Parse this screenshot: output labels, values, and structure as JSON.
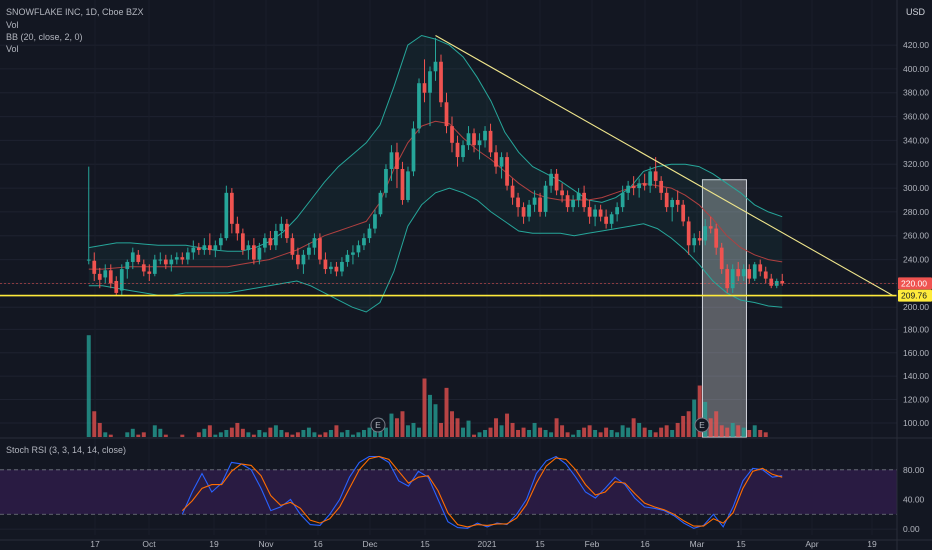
{
  "header": {
    "symbol_line": "SNOWFLAKE INC, 1D, Cboe BZX",
    "currency": "USD",
    "studies": [
      "Vol",
      "BB (20, close, 2, 0)",
      "Vol"
    ]
  },
  "rsi_panel": {
    "title": "Stoch RSI (3, 3, 14, 14, close)"
  },
  "colors": {
    "background": "#131722",
    "up": "#26a69a",
    "down": "#ef5350",
    "bb_band": "#26a69a",
    "bb_basis": "#b04040",
    "trendline": "#f0e68c",
    "support": "#ffeb3b",
    "rsi_k": "#2962ff",
    "rsi_d": "#ff6d00",
    "rsi_fill": "#2a1b44"
  },
  "chart_data": [
    {
      "type": "candlestick",
      "title": "SNOWFLAKE INC, 1D, Cboe BZX",
      "y_axis_ticks": [
        200,
        220,
        240,
        260,
        280,
        300,
        320,
        340,
        360,
        380,
        400,
        420
      ],
      "ylim": [
        196,
        436
      ],
      "x_axis_labels": [
        "17",
        "Oct",
        "19",
        "Nov",
        "16",
        "Dec",
        "15",
        "2021",
        "15",
        "Feb",
        "16",
        "Mar",
        "15",
        "Apr",
        "19"
      ],
      "price_labels": [
        {
          "value": "220.00",
          "color": "#ef5350"
        },
        {
          "value": "209.76",
          "color": "#ffeb3b"
        }
      ],
      "annotations": {
        "descending_trendline": {
          "from_price": 428,
          "to_price": 209.76
        },
        "support_line": 209.76,
        "highlight_box": {
          "from_price": 207,
          "to_price": 307
        },
        "earnings_markers": [
          "E",
          "E"
        ]
      },
      "candles_ohlc": [
        [
          240,
          318,
          236,
          240
        ],
        [
          239,
          246,
          222,
          228
        ],
        [
          228,
          233,
          216,
          223
        ],
        [
          225,
          236,
          220,
          231
        ],
        [
          231,
          236,
          216,
          220
        ],
        [
          222,
          226,
          210,
          212
        ],
        [
          214,
          236,
          210,
          232
        ],
        [
          232,
          240,
          224,
          238
        ],
        [
          238,
          250,
          232,
          246
        ],
        [
          244,
          248,
          236,
          238
        ],
        [
          236,
          240,
          226,
          230
        ],
        [
          230,
          236,
          222,
          228
        ],
        [
          228,
          244,
          226,
          240
        ],
        [
          240,
          246,
          236,
          240
        ],
        [
          240,
          244,
          232,
          236
        ],
        [
          236,
          244,
          230,
          240
        ],
        [
          240,
          246,
          236,
          242
        ],
        [
          242,
          246,
          236,
          240
        ],
        [
          240,
          250,
          236,
          246
        ],
        [
          246,
          256,
          240,
          250
        ],
        [
          250,
          254,
          244,
          248
        ],
        [
          248,
          258,
          244,
          252
        ],
        [
          252,
          262,
          244,
          248
        ],
        [
          248,
          256,
          242,
          252
        ],
        [
          252,
          262,
          248,
          258
        ],
        [
          258,
          302,
          256,
          296
        ],
        [
          296,
          300,
          262,
          270
        ],
        [
          270,
          276,
          256,
          262
        ],
        [
          262,
          266,
          244,
          248
        ],
        [
          248,
          256,
          240,
          252
        ],
        [
          252,
          258,
          236,
          240
        ],
        [
          240,
          254,
          236,
          250
        ],
        [
          250,
          262,
          246,
          258
        ],
        [
          258,
          264,
          248,
          252
        ],
        [
          252,
          270,
          248,
          264
        ],
        [
          264,
          276,
          258,
          270
        ],
        [
          270,
          274,
          254,
          258
        ],
        [
          258,
          262,
          240,
          244
        ],
        [
          244,
          250,
          232,
          236
        ],
        [
          236,
          248,
          228,
          244
        ],
        [
          244,
          254,
          240,
          250
        ],
        [
          250,
          262,
          244,
          258
        ],
        [
          258,
          262,
          236,
          240
        ],
        [
          240,
          246,
          228,
          232
        ],
        [
          232,
          238,
          228,
          234
        ],
        [
          234,
          238,
          226,
          230
        ],
        [
          230,
          242,
          226,
          238
        ],
        [
          238,
          248,
          234,
          244
        ],
        [
          244,
          252,
          236,
          246
        ],
        [
          246,
          256,
          242,
          252
        ],
        [
          252,
          262,
          248,
          258
        ],
        [
          258,
          270,
          254,
          266
        ],
        [
          266,
          282,
          262,
          278
        ],
        [
          278,
          298,
          276,
          296
        ],
        [
          296,
          320,
          292,
          316
        ],
        [
          316,
          336,
          306,
          330
        ],
        [
          330,
          338,
          300,
          316
        ],
        [
          316,
          322,
          286,
          290
        ],
        [
          290,
          318,
          288,
          314
        ],
        [
          314,
          356,
          310,
          350
        ],
        [
          350,
          392,
          346,
          388
        ],
        [
          388,
          408,
          372,
          380
        ],
        [
          380,
          402,
          352,
          398
        ],
        [
          398,
          426,
          390,
          406
        ],
        [
          406,
          412,
          368,
          372
        ],
        [
          372,
          380,
          346,
          352
        ],
        [
          352,
          360,
          330,
          338
        ],
        [
          338,
          344,
          318,
          326
        ],
        [
          326,
          340,
          322,
          336
        ],
        [
          336,
          352,
          332,
          346
        ],
        [
          346,
          350,
          330,
          336
        ],
        [
          336,
          346,
          324,
          340
        ],
        [
          340,
          352,
          334,
          348
        ],
        [
          348,
          354,
          326,
          330
        ],
        [
          330,
          336,
          312,
          318
        ],
        [
          318,
          330,
          308,
          326
        ],
        [
          326,
          330,
          298,
          302
        ],
        [
          302,
          308,
          286,
          292
        ],
        [
          292,
          296,
          276,
          284
        ],
        [
          284,
          288,
          270,
          276
        ],
        [
          276,
          290,
          272,
          286
        ],
        [
          286,
          298,
          280,
          292
        ],
        [
          292,
          296,
          276,
          280
        ],
        [
          280,
          306,
          276,
          302
        ],
        [
          302,
          316,
          296,
          312
        ],
        [
          312,
          316,
          294,
          298
        ],
        [
          298,
          304,
          288,
          294
        ],
        [
          294,
          298,
          280,
          284
        ],
        [
          284,
          294,
          280,
          290
        ],
        [
          290,
          300,
          284,
          296
        ],
        [
          296,
          302,
          280,
          284
        ],
        [
          284,
          290,
          270,
          276
        ],
        [
          276,
          286,
          268,
          282
        ],
        [
          282,
          286,
          272,
          276
        ],
        [
          276,
          282,
          266,
          270
        ],
        [
          270,
          280,
          266,
          278
        ],
        [
          278,
          288,
          272,
          284
        ],
        [
          284,
          302,
          280,
          296
        ],
        [
          296,
          306,
          290,
          302
        ],
        [
          302,
          310,
          294,
          300
        ],
        [
          300,
          308,
          292,
          304
        ],
        [
          304,
          312,
          298,
          302
        ],
        [
          302,
          318,
          296,
          314
        ],
        [
          314,
          326,
          300,
          306
        ],
        [
          306,
          310,
          290,
          296
        ],
        [
          296,
          300,
          280,
          284
        ],
        [
          284,
          292,
          272,
          290
        ],
        [
          290,
          298,
          280,
          286
        ],
        [
          286,
          290,
          268,
          272
        ],
        [
          272,
          276,
          244,
          252
        ],
        [
          252,
          262,
          246,
          258
        ],
        [
          258,
          264,
          252,
          256
        ],
        [
          256,
          274,
          252,
          268
        ],
        [
          268,
          276,
          262,
          266
        ],
        [
          266,
          270,
          244,
          250
        ],
        [
          250,
          254,
          228,
          232
        ],
        [
          232,
          236,
          212,
          216
        ],
        [
          216,
          236,
          212,
          232
        ],
        [
          232,
          238,
          222,
          226
        ],
        [
          226,
          236,
          222,
          232
        ],
        [
          232,
          236,
          220,
          224
        ],
        [
          224,
          238,
          222,
          236
        ],
        [
          236,
          240,
          226,
          230
        ],
        [
          230,
          234,
          220,
          224
        ],
        [
          224,
          228,
          216,
          218
        ],
        [
          218,
          224,
          216,
          222
        ],
        [
          222,
          228,
          218,
          220
        ]
      ],
      "bb_upper": [
        250,
        252,
        254,
        254,
        253,
        252,
        252,
        252,
        250,
        248,
        247,
        247,
        250,
        255,
        263,
        275,
        290,
        305,
        318,
        328,
        338,
        353,
        385,
        420,
        428,
        425,
        420,
        410,
        393,
        373,
        347,
        330,
        318,
        312,
        306,
        298,
        290,
        288,
        292,
        300,
        314,
        318,
        320,
        320,
        318,
        312,
        304,
        296,
        286,
        280,
        276
      ],
      "bb_lower": [
        218,
        218,
        216,
        214,
        212,
        210,
        210,
        212,
        212,
        212,
        212,
        214,
        216,
        218,
        220,
        222,
        218,
        212,
        206,
        200,
        196,
        204,
        230,
        268,
        286,
        296,
        300,
        296,
        290,
        280,
        272,
        264,
        262,
        262,
        262,
        260,
        262,
        264,
        266,
        268,
        270,
        266,
        258,
        248,
        236,
        222,
        212,
        206,
        204,
        201,
        200
      ],
      "bb_basis": [
        232,
        232,
        233,
        234,
        234,
        234,
        234,
        234,
        234,
        234,
        234,
        236,
        238,
        240,
        244,
        248,
        254,
        260,
        264,
        268,
        272,
        288,
        316,
        338,
        352,
        356,
        354,
        342,
        332,
        324,
        314,
        304,
        296,
        292,
        290,
        290,
        290,
        292,
        296,
        300,
        304,
        302,
        300,
        294,
        286,
        274,
        260,
        250,
        244,
        240,
        238
      ]
    },
    {
      "type": "bar",
      "title": "Vol",
      "y_axis_ticks": [
        "100.00",
        "120.00",
        "140.00",
        "160.00",
        "180.00"
      ],
      "values": [
        175,
        110,
        100,
        92,
        90,
        86,
        88,
        92,
        95,
        90,
        92,
        88,
        98,
        95,
        90,
        88,
        86,
        90,
        88,
        86,
        92,
        95,
        98,
        90,
        92,
        94,
        96,
        100,
        95,
        92,
        90,
        94,
        92,
        96,
        98,
        94,
        92,
        90,
        92,
        94,
        96,
        92,
        90,
        92,
        94,
        98,
        92,
        94,
        90,
        92,
        94,
        96,
        100,
        104,
        96,
        108,
        104,
        110,
        98,
        100,
        96,
        138,
        124,
        116,
        100,
        130,
        110,
        104,
        96,
        102,
        90,
        92,
        94,
        96,
        104,
        98,
        108,
        100,
        94,
        96,
        94,
        100,
        96,
        94,
        92,
        104,
        98,
        92,
        90,
        94,
        96,
        98,
        94,
        92,
        96,
        94,
        92,
        98,
        96,
        104,
        100,
        96,
        94,
        92,
        96,
        98,
        94,
        100,
        106,
        110,
        120,
        132,
        118,
        104,
        110,
        98,
        96,
        100,
        98,
        96,
        94,
        98,
        94,
        92
      ],
      "ylim": [
        88,
        188
      ]
    },
    {
      "type": "line",
      "title": "Stoch RSI (3, 3, 14, 14, close)",
      "y_axis_ticks": [
        "0.00",
        "40.00",
        "80.00"
      ],
      "ylim": [
        -8,
        100
      ],
      "band": [
        20,
        80
      ],
      "series": [
        {
          "name": "K",
          "values": [
            20,
            50,
            75,
            50,
            62,
            90,
            88,
            80,
            55,
            25,
            30,
            40,
            20,
            6,
            5,
            20,
            40,
            70,
            90,
            98,
            98,
            90,
            65,
            58,
            78,
            70,
            40,
            10,
            2,
            1,
            8,
            3,
            8,
            6,
            20,
            40,
            75,
            92,
            98,
            88,
            70,
            50,
            42,
            55,
            70,
            60,
            42,
            30,
            28,
            25,
            18,
            8,
            1,
            5,
            20,
            3,
            30,
            65,
            82,
            80,
            70,
            72
          ]
        },
        {
          "name": "D",
          "values": [
            25,
            38,
            55,
            60,
            60,
            78,
            88,
            86,
            72,
            45,
            32,
            36,
            28,
            12,
            8,
            14,
            30,
            55,
            80,
            95,
            98,
            94,
            78,
            62,
            70,
            72,
            52,
            22,
            6,
            3,
            6,
            5,
            7,
            7,
            15,
            33,
            62,
            85,
            96,
            94,
            80,
            60,
            46,
            50,
            64,
            62,
            48,
            35,
            30,
            26,
            20,
            11,
            4,
            4,
            14,
            8,
            22,
            55,
            78,
            82,
            74,
            70
          ]
        }
      ]
    }
  ]
}
